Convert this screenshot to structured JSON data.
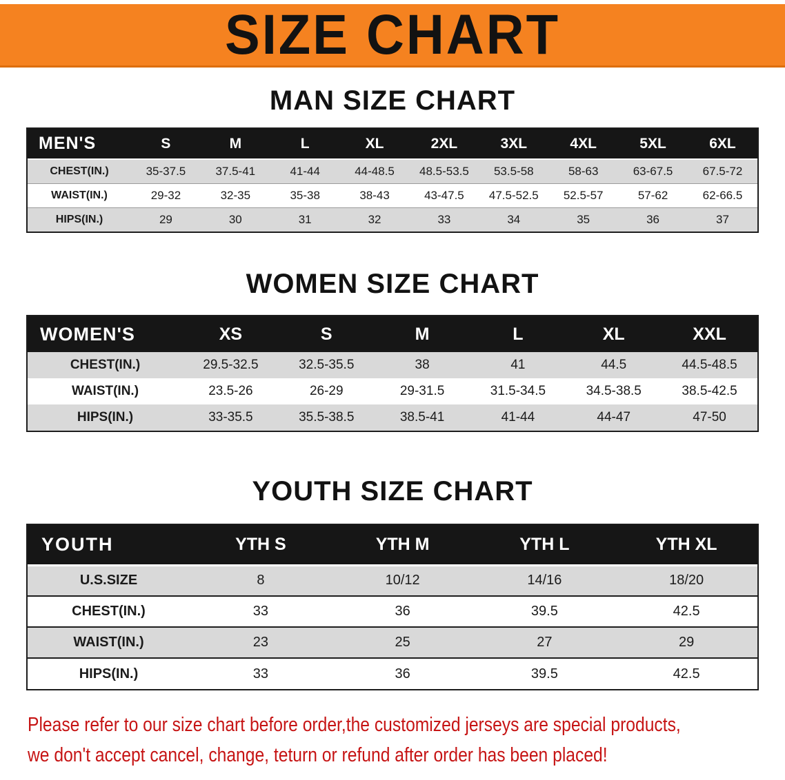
{
  "banner": {
    "title": "SIZE CHART"
  },
  "colors": {
    "banner_bg": "#F58220",
    "table_header_bg": "#161616",
    "row_alt": "#D9D9D9",
    "disclaimer_red": "#C61414"
  },
  "sections": [
    {
      "heading": "MAN SIZE CHART",
      "table": {
        "header_label": "MEN'S",
        "columns": [
          "S",
          "M",
          "L",
          "XL",
          "2XL",
          "3XL",
          "4XL",
          "5XL",
          "6XL"
        ],
        "rows": [
          {
            "label": "CHEST(IN.)",
            "values": [
              "35-37.5",
              "37.5-41",
              "41-44",
              "44-48.5",
              "48.5-53.5",
              "53.5-58",
              "58-63",
              "63-67.5",
              "67.5-72"
            ]
          },
          {
            "label": "WAIST(IN.)",
            "values": [
              "29-32",
              "32-35",
              "35-38",
              "38-43",
              "43-47.5",
              "47.5-52.5",
              "52.5-57",
              "57-62",
              "62-66.5"
            ]
          },
          {
            "label": "HIPS(IN.)",
            "values": [
              "29",
              "30",
              "31",
              "32",
              "33",
              "34",
              "35",
              "36",
              "37"
            ]
          }
        ]
      }
    },
    {
      "heading": "WOMEN SIZE CHART",
      "table": {
        "header_label": "WOMEN'S",
        "columns": [
          "XS",
          "S",
          "M",
          "L",
          "XL",
          "XXL"
        ],
        "rows": [
          {
            "label": "CHEST(IN.)",
            "values": [
              "29.5-32.5",
              "32.5-35.5",
              "38",
              "41",
              "44.5",
              "44.5-48.5"
            ]
          },
          {
            "label": "WAIST(IN.)",
            "values": [
              "23.5-26",
              "26-29",
              "29-31.5",
              "31.5-34.5",
              "34.5-38.5",
              "38.5-42.5"
            ]
          },
          {
            "label": "HIPS(IN.)",
            "values": [
              "33-35.5",
              "35.5-38.5",
              "38.5-41",
              "41-44",
              "44-47",
              "47-50"
            ]
          }
        ]
      }
    },
    {
      "heading": "YOUTH SIZE CHART",
      "table": {
        "header_label": "YOUTH",
        "columns": [
          "YTH S",
          "YTH M",
          "YTH L",
          "YTH XL"
        ],
        "rows": [
          {
            "label": "U.S.SIZE",
            "values": [
              "8",
              "10/12",
              "14/16",
              "18/20"
            ]
          },
          {
            "label": "CHEST(IN.)",
            "values": [
              "33",
              "36",
              "39.5",
              "42.5"
            ]
          },
          {
            "label": "WAIST(IN.)",
            "values": [
              "23",
              "25",
              "27",
              "29"
            ]
          },
          {
            "label": "HIPS(IN.)",
            "values": [
              "33",
              "36",
              "39.5",
              "42.5"
            ]
          }
        ]
      }
    }
  ],
  "disclaimer": {
    "line1": "Please refer to our size chart before order,the customized jerseys are special products,",
    "line2": "we don't accept cancel, change, teturn or refund after order has been placed!"
  }
}
